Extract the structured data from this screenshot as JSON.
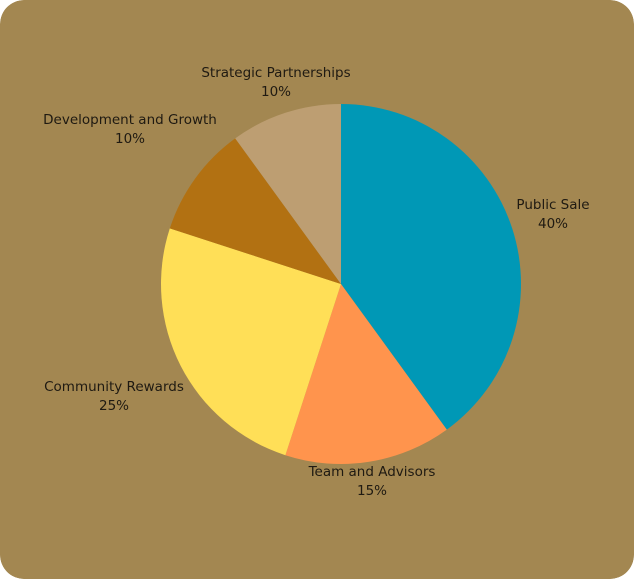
{
  "colors": {
    "background": "#A38751"
  },
  "chart_data": {
    "type": "pie",
    "title": "",
    "slices": [
      {
        "label": "Public Sale",
        "percent_label": "40%",
        "value": 40,
        "color": "#0098B6"
      },
      {
        "label": "Team and Advisors",
        "percent_label": "15%",
        "value": 15,
        "color": "#FF944D"
      },
      {
        "label": "Community Rewards",
        "percent_label": "25%",
        "value": 25,
        "color": "#FFDF57"
      },
      {
        "label": "Development and Growth",
        "percent_label": "10%",
        "value": 10,
        "color": "#B27112"
      },
      {
        "label": "Strategic Partnerships",
        "percent_label": "10%",
        "value": 10,
        "color": "#BD9E72"
      }
    ],
    "start_angle": "12 o'clock",
    "direction": "clockwise",
    "legend": "none"
  }
}
